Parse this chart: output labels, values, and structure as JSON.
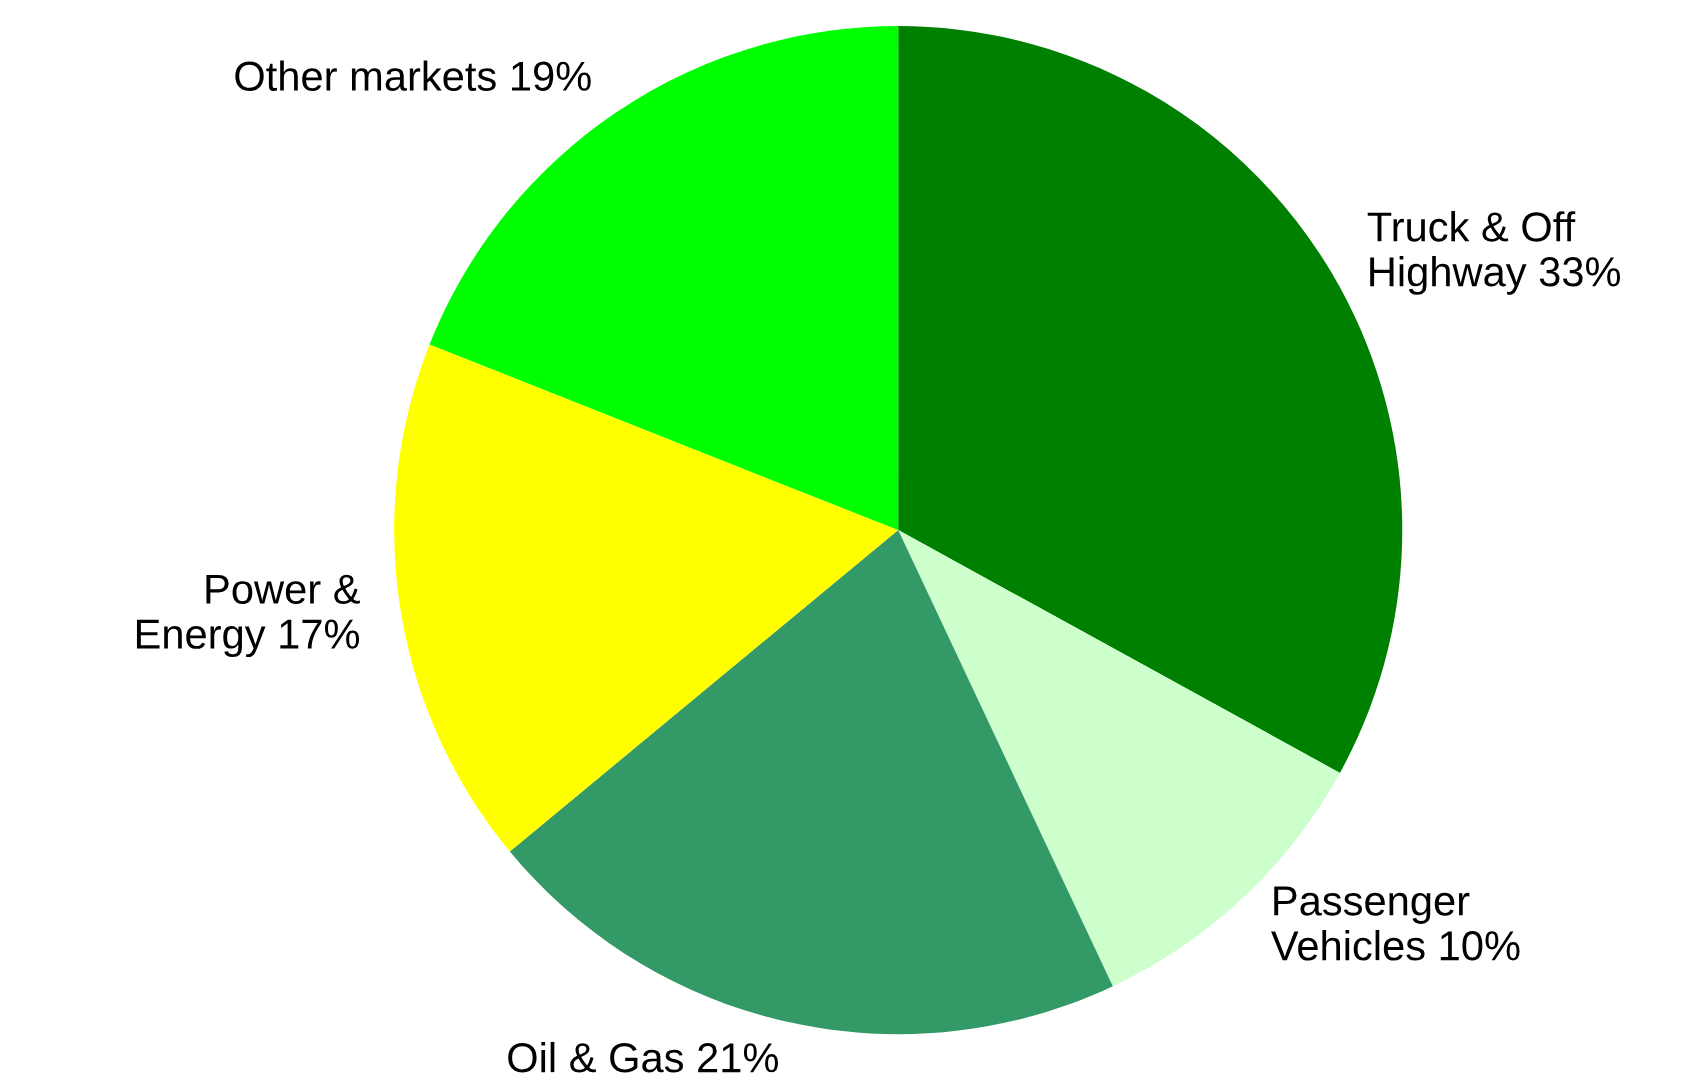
{
  "chart_data": {
    "type": "pie",
    "categories": [
      "Truck & Off\nHighway",
      "Passenger\nVehicles",
      "Oil & Gas",
      "Power &\nEnergy",
      "Other markets"
    ],
    "values": [
      33,
      10,
      21,
      17,
      19
    ],
    "value_labels": [
      "33%",
      "10%",
      "21%",
      "17%",
      "19%"
    ],
    "colors": [
      "#008000",
      "#ccffcc",
      "#339966",
      "#ffff00",
      "#00ff00"
    ],
    "legend": false
  }
}
